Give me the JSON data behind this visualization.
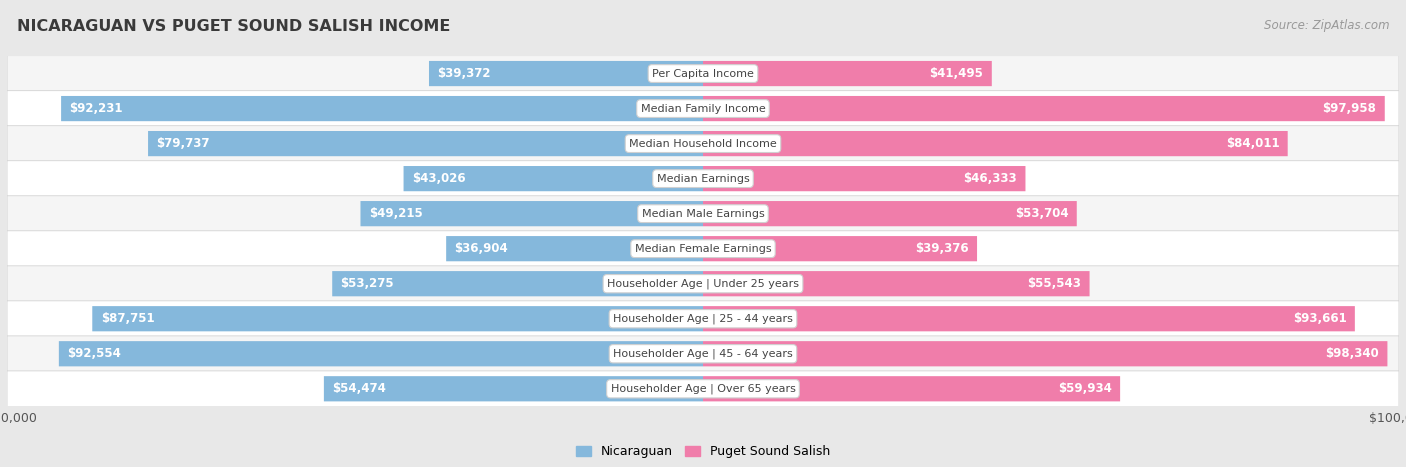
{
  "title": "NICARAGUAN VS PUGET SOUND SALISH INCOME",
  "source": "Source: ZipAtlas.com",
  "categories": [
    "Per Capita Income",
    "Median Family Income",
    "Median Household Income",
    "Median Earnings",
    "Median Male Earnings",
    "Median Female Earnings",
    "Householder Age | Under 25 years",
    "Householder Age | 25 - 44 years",
    "Householder Age | 45 - 64 years",
    "Householder Age | Over 65 years"
  ],
  "nicaraguan_values": [
    39372,
    92231,
    79737,
    43026,
    49215,
    36904,
    53275,
    87751,
    92554,
    54474
  ],
  "puget_values": [
    41495,
    97958,
    84011,
    46333,
    53704,
    39376,
    55543,
    93661,
    98340,
    59934
  ],
  "nicaraguan_labels": [
    "$39,372",
    "$92,231",
    "$79,737",
    "$43,026",
    "$49,215",
    "$36,904",
    "$53,275",
    "$87,751",
    "$92,554",
    "$54,474"
  ],
  "puget_labels": [
    "$41,495",
    "$97,958",
    "$84,011",
    "$46,333",
    "$53,704",
    "$39,376",
    "$55,543",
    "$93,661",
    "$98,340",
    "$59,934"
  ],
  "nicaraguan_color": "#85b8dc",
  "puget_color": "#f07daa",
  "nicaraguan_color_light": "#b8d4ea",
  "puget_color_light": "#f4aec8",
  "max_value": 100000,
  "bar_height": 0.72,
  "bg_color": "#e8e8e8",
  "row_bg_colors": [
    "#f5f5f5",
    "#ffffff",
    "#f5f5f5",
    "#ffffff",
    "#f5f5f5",
    "#ffffff",
    "#f5f5f5",
    "#ffffff",
    "#f5f5f5",
    "#ffffff"
  ],
  "label_color_inside": "#ffffff",
  "label_color_outside": "#555555",
  "inside_threshold": 30000,
  "title_color": "#3a3a3a",
  "source_color": "#999999"
}
